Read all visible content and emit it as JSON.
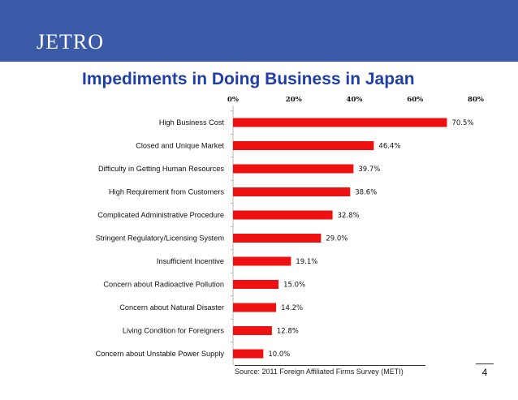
{
  "header": {
    "logo_text": "JETRO",
    "banner_color": "#3b5ba9"
  },
  "slide": {
    "title": "Impediments in Doing Business in Japan",
    "source": "Source: 2011 Foreign Affiliated Firms Survey (METI)",
    "page_number": "4"
  },
  "chart_data": {
    "type": "bar",
    "orientation": "horizontal",
    "title": "",
    "categories": [
      "High Business Cost",
      "Closed and Unique Market",
      "Difficulty in Getting Human Resources",
      "High Requirement from Customers",
      "Complicated Administrative Procedure",
      "Stringent Regulatory/Licensing System",
      "Insufficient Incentive",
      "Concern about Radioactive Pollution",
      "Concern about Natural Disaster",
      "Living Condition for Foreigners",
      "Concern about Unstable Power Supply"
    ],
    "values": [
      70.5,
      46.4,
      39.7,
      38.6,
      32.8,
      29.0,
      19.1,
      15.0,
      14.2,
      12.8,
      10.0
    ],
    "value_labels": [
      "70.5%",
      "46.4%",
      "39.7%",
      "38.6%",
      "32.8%",
      "29.0%",
      "19.1%",
      "15.0%",
      "14.2%",
      "12.8%",
      "10.0%"
    ],
    "xlim": [
      0,
      80
    ],
    "ticks": [
      0,
      20,
      40,
      60,
      80
    ],
    "tick_labels": [
      "0%",
      "20%",
      "40%",
      "60%",
      "80%"
    ],
    "axis_position": "top",
    "grid": false,
    "bar_color": "#ee1111"
  }
}
